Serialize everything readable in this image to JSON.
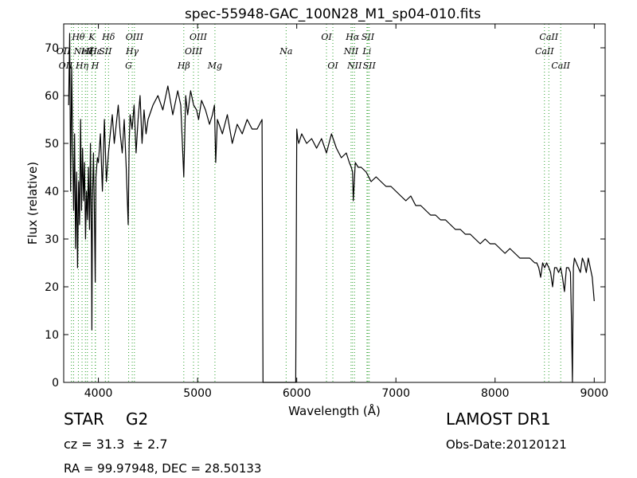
{
  "chart_data": {
    "type": "line",
    "title": "spec-55948-GAC_100N28_M1_sp04-010.fits",
    "xlabel": "Wavelength (Å)",
    "ylabel": "Flux (relative)",
    "xlim": [
      3650,
      9110
    ],
    "ylim": [
      0,
      75
    ],
    "x_ticks": [
      4000,
      5000,
      6000,
      7000,
      8000,
      9000
    ],
    "y_ticks": [
      0,
      10,
      20,
      30,
      40,
      50,
      60,
      70
    ],
    "grid": false,
    "series": [
      {
        "color": "#000000",
        "x": [
          3700,
          3710,
          3720,
          3730,
          3740,
          3750,
          3760,
          3770,
          3780,
          3790,
          3800,
          3810,
          3820,
          3830,
          3840,
          3850,
          3860,
          3870,
          3880,
          3890,
          3900,
          3910,
          3920,
          3930,
          3934,
          3940,
          3950,
          3960,
          3968,
          3975,
          3990,
          4000,
          4020,
          4040,
          4060,
          4080,
          4101,
          4120,
          4140,
          4160,
          4180,
          4200,
          4220,
          4240,
          4260,
          4280,
          4300,
          4310,
          4320,
          4340,
          4360,
          4380,
          4400,
          4420,
          4440,
          4460,
          4480,
          4500,
          4550,
          4600,
          4650,
          4700,
          4750,
          4800,
          4830,
          4861,
          4880,
          4900,
          4930,
          4960,
          4990,
          5010,
          5040,
          5080,
          5120,
          5150,
          5170,
          5183,
          5200,
          5250,
          5300,
          5350,
          5400,
          5450,
          5500,
          5550,
          5600,
          5650,
          5660,
          5670,
          5680,
          5700,
          5800,
          5900,
          5950,
          5990,
          6000,
          6010,
          6020,
          6050,
          6100,
          6150,
          6200,
          6250,
          6300,
          6350,
          6400,
          6450,
          6500,
          6530,
          6550,
          6563,
          6570,
          6590,
          6620,
          6650,
          6700,
          6750,
          6800,
          6850,
          6900,
          6950,
          7000,
          7050,
          7100,
          7150,
          7200,
          7250,
          7300,
          7350,
          7400,
          7450,
          7500,
          7550,
          7600,
          7650,
          7700,
          7750,
          7800,
          7850,
          7900,
          7950,
          8000,
          8050,
          8100,
          8150,
          8200,
          8250,
          8300,
          8350,
          8400,
          8420,
          8440,
          8460,
          8480,
          8500,
          8520,
          8542,
          8560,
          8580,
          8600,
          8620,
          8640,
          8662,
          8680,
          8700,
          8720,
          8740,
          8760,
          8770,
          8780,
          8790,
          8800,
          8820,
          8840,
          8860,
          8880,
          8900,
          8920,
          8940,
          8960,
          8980,
          9000
        ],
        "y": [
          58,
          73,
          40,
          66,
          50,
          36,
          52,
          28,
          44,
          24,
          42,
          33,
          55,
          36,
          49,
          38,
          46,
          30,
          40,
          34,
          45,
          32,
          50,
          28,
          11,
          38,
          48,
          35,
          21,
          43,
          47,
          46,
          52,
          40,
          55,
          42,
          48,
          52,
          56,
          50,
          54,
          58,
          52,
          48,
          55,
          45,
          33,
          50,
          56,
          53,
          58,
          48,
          55,
          60,
          50,
          57,
          52,
          55,
          58,
          60,
          57,
          62,
          56,
          61,
          58,
          43,
          60,
          56,
          61,
          58,
          57,
          55,
          59,
          57,
          54,
          56,
          58,
          46,
          55,
          52,
          56,
          50,
          54,
          52,
          55,
          53,
          53,
          55,
          0,
          0,
          0,
          0,
          0,
          0,
          0,
          0,
          53,
          51,
          50,
          52,
          50,
          51,
          49,
          51,
          48,
          52,
          49,
          47,
          48,
          46,
          45,
          44,
          38,
          46,
          45,
          45,
          44,
          42,
          43,
          42,
          41,
          41,
          40,
          39,
          38,
          39,
          37,
          37,
          36,
          35,
          35,
          34,
          34,
          33,
          32,
          32,
          31,
          31,
          30,
          29,
          30,
          29,
          29,
          28,
          27,
          28,
          27,
          26,
          26,
          26,
          25,
          25,
          24,
          22,
          25,
          24,
          25,
          24,
          23,
          20,
          24,
          24,
          23,
          24,
          22,
          19,
          24,
          24,
          23,
          13,
          0,
          24,
          26,
          25,
          24,
          23,
          26,
          25,
          23,
          26,
          24,
          22,
          17
        ]
      }
    ],
    "lines": [
      {
        "x": 3728,
        "label": "OII",
        "row": 2,
        "offset": -10
      },
      {
        "x": 3750,
        "label": "OII",
        "row": 3,
        "offset": -10
      },
      {
        "x": 3798,
        "label": "Hθ",
        "row": 1,
        "offset": 0
      },
      {
        "x": 3835,
        "label": "Hη",
        "row": 3,
        "offset": 0
      },
      {
        "x": 3869,
        "label": "NeIII",
        "row": 2,
        "offset": 0
      },
      {
        "x": 3889,
        "label": "Hζ",
        "row": 2,
        "offset": 0
      },
      {
        "x": 3934,
        "label": "K",
        "row": 1,
        "offset": 0
      },
      {
        "x": 3968,
        "label": "H",
        "row": 3,
        "offset": 0
      },
      {
        "x": 3970,
        "label": "Hε",
        "row": 2,
        "offset": 0
      },
      {
        "x": 4070,
        "label": "SII",
        "row": 2,
        "offset": 0
      },
      {
        "x": 4102,
        "label": "Hδ",
        "row": 1,
        "offset": 0
      },
      {
        "x": 4305,
        "label": "G",
        "row": 3,
        "offset": 0
      },
      {
        "x": 4341,
        "label": "Hγ",
        "row": 2,
        "offset": 0
      },
      {
        "x": 4363,
        "label": "OIII",
        "row": 1,
        "offset": 0
      },
      {
        "x": 4861,
        "label": "Hβ",
        "row": 3,
        "offset": 0
      },
      {
        "x": 4959,
        "label": "OIII",
        "row": 2,
        "offset": 0
      },
      {
        "x": 5007,
        "label": "OIII",
        "row": 1,
        "offset": 0
      },
      {
        "x": 5175,
        "label": "Mg",
        "row": 3,
        "offset": 0
      },
      {
        "x": 5893,
        "label": "Na",
        "row": 2,
        "offset": 0
      },
      {
        "x": 6300,
        "label": "OI",
        "row": 1,
        "offset": 0
      },
      {
        "x": 6364,
        "label": "OI",
        "row": 3,
        "offset": 0
      },
      {
        "x": 6548,
        "label": "NII",
        "row": 2,
        "offset": 0
      },
      {
        "x": 6563,
        "label": "Hα",
        "row": 1,
        "offset": 0
      },
      {
        "x": 6583,
        "label": "NII",
        "row": 3,
        "offset": 0
      },
      {
        "x": 6708,
        "label": "Li",
        "row": 2,
        "offset": 0
      },
      {
        "x": 6717,
        "label": "SII",
        "row": 1,
        "offset": 0
      },
      {
        "x": 6731,
        "label": "SII",
        "row": 3,
        "offset": 0
      },
      {
        "x": 8498,
        "label": "CaII",
        "row": 2,
        "offset": 0
      },
      {
        "x": 8542,
        "label": "CaII",
        "row": 1,
        "offset": 0
      },
      {
        "x": 8662,
        "label": "CaII",
        "row": 3,
        "offset": 0
      }
    ]
  },
  "info": {
    "object_class": "STAR",
    "subclass": "G2",
    "redshift": "cz = 31.3  ± 2.7",
    "coords": "RA = 99.97948, DEC = 28.50133",
    "survey": "LAMOST DR1",
    "obs_date": "Obs-Date:20120121"
  }
}
